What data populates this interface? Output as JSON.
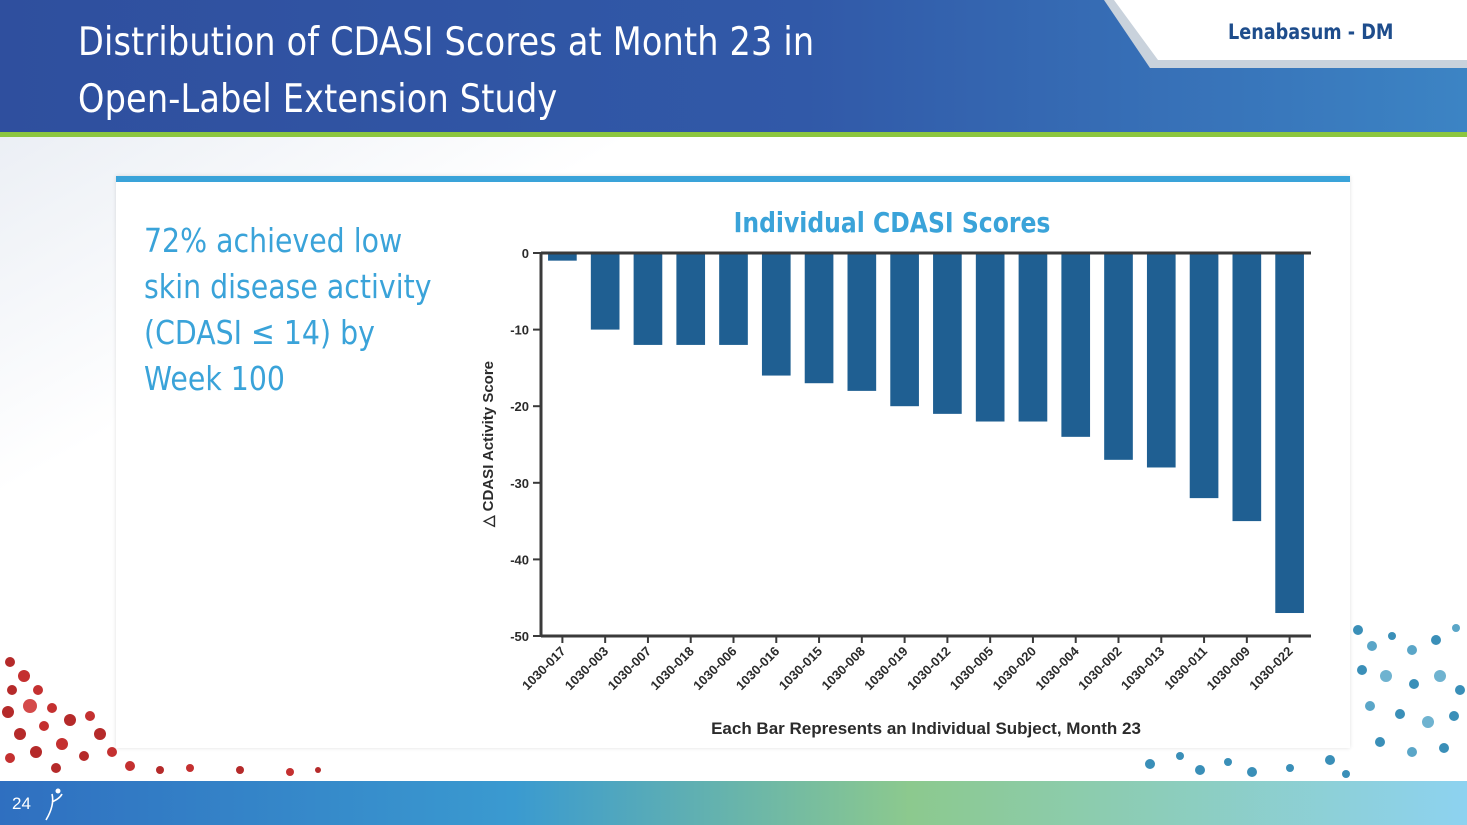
{
  "header": {
    "title_line1": "Distribution of CDASI Scores at Month 23 in",
    "title_line2": "Open-Label Extension Study",
    "brand_tag": "Lenabasum - DM"
  },
  "highlight_text": {
    "line1": "72% achieved low",
    "line2": "skin disease activity",
    "line3": "(CDASI ≤ 14) by",
    "line4": "Week 100"
  },
  "footer": {
    "page_number": "24"
  },
  "colors": {
    "header_blue": "#2f56a6",
    "accent_green": "#8cc63f",
    "panel_accent": "#3aa3d9",
    "bar_fill": "#1f5f92",
    "brand_text": "#1e4d8c"
  },
  "chart_data": {
    "type": "bar",
    "title": "Individual CDASI Scores",
    "xlabel": "Each Bar Represents an Individual Subject, Month 23",
    "ylabel": "△ CDASI Activity Score",
    "ylim": [
      -50,
      0
    ],
    "yticks": [
      0,
      -10,
      -20,
      -30,
      -40,
      -50
    ],
    "categories": [
      "1030-017",
      "1030-003",
      "1030-007",
      "1030-018",
      "1030-006",
      "1030-016",
      "1030-015",
      "1030-008",
      "1030-019",
      "1030-012",
      "1030-005",
      "1030-020",
      "1030-004",
      "1030-002",
      "1030-013",
      "1030-011",
      "1030-009",
      "1030-022"
    ],
    "values": [
      -1,
      -10,
      -12,
      -12,
      -12,
      -16,
      -17,
      -18,
      -20,
      -21,
      -22,
      -22,
      -24,
      -27,
      -28,
      -32,
      -35,
      -47
    ],
    "legend": "none",
    "grid": false
  }
}
